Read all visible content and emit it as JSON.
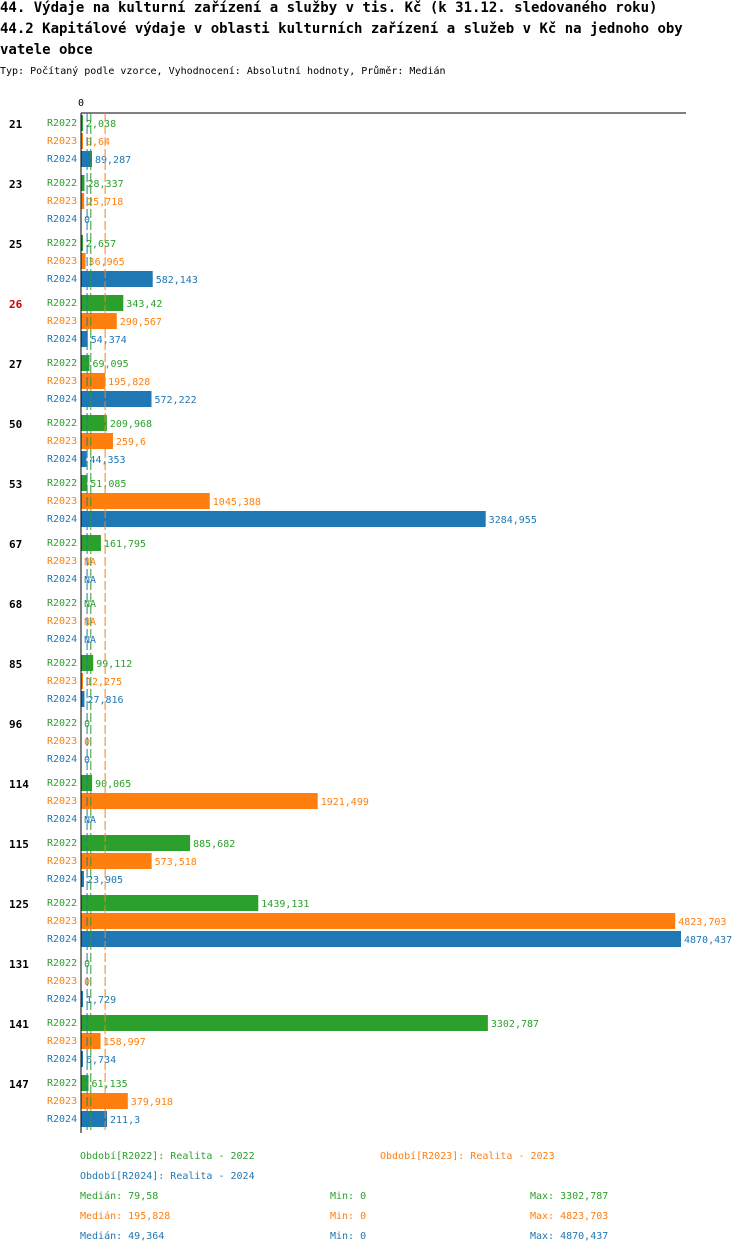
{
  "title": {
    "line1": "44. Výdaje na kulturní zařízení a služby v tis. Kč (k 31.12. sledovaného roku)",
    "line2": "44.2 Kapitálové výdaje v oblasti kulturních zařízení a služeb v Kč na jednoho oby",
    "line3": "vatele obce"
  },
  "subtitle": "Typ: Počítaný podle vzorce, Vyhodnocení: Absolutní hodnoty, Průměr: Medián",
  "colors": {
    "R2022": "#2ca02c",
    "R2023": "#ff7f0e",
    "R2024": "#1f77b4",
    "highlight": "#cc0000"
  },
  "chart_data": {
    "type": "bar",
    "orientation": "horizontal",
    "axis_zero_label": "0",
    "xlim": [
      0,
      4870.437
    ],
    "categories": [
      "21",
      "23",
      "25",
      "26",
      "27",
      "50",
      "53",
      "67",
      "68",
      "85",
      "96",
      "114",
      "115",
      "125",
      "131",
      "141",
      "147"
    ],
    "highlighted_category": "26",
    "series": [
      {
        "name": "R2022",
        "values": [
          2.038,
          28.337,
          2.657,
          343.42,
          69.095,
          209.968,
          51.085,
          161.795,
          null,
          99.112,
          0,
          90.065,
          885.682,
          1439.131,
          0,
          3302.787,
          61.135
        ],
        "labels": [
          "2,038",
          "28,337",
          "2,657",
          "343,42",
          "69,095",
          "209,968",
          "51,085",
          "161,795",
          "NA",
          "99,112",
          "0",
          "90,065",
          "885,682",
          "1439,131",
          "0",
          "3302,787",
          "61,135"
        ]
      },
      {
        "name": "R2023",
        "values": [
          0.64,
          25.718,
          36.965,
          290.567,
          195.828,
          259.6,
          1045.388,
          null,
          null,
          12.275,
          0,
          1921.499,
          573.518,
          4823.703,
          0,
          158.997,
          379.918
        ],
        "labels": [
          "0,64",
          "25,718",
          "36,965",
          "290,567",
          "195,828",
          "259,6",
          "1045,388",
          "NA",
          "NA",
          "12,275",
          "0",
          "1921,499",
          "573,518",
          "4823,703",
          "0",
          "158,997",
          "379,918"
        ]
      },
      {
        "name": "R2024",
        "values": [
          89.287,
          0,
          582.143,
          54.374,
          572.222,
          44.353,
          3284.955,
          null,
          null,
          27.816,
          0,
          null,
          23.905,
          4870.437,
          1.729,
          6.734,
          211.3
        ],
        "labels": [
          "89,287",
          "0",
          "582,143",
          "54,374",
          "572,222",
          "44,353",
          "3284,955",
          "NA",
          "NA",
          "27,816",
          "0",
          "NA",
          "23,905",
          "4870,437",
          "1,729",
          "6,734",
          "211,3"
        ]
      }
    ],
    "medians": {
      "R2022": 79.58,
      "R2023": 195.828,
      "R2024": 49.364
    }
  },
  "legend": {
    "periods": [
      {
        "key": "R2022",
        "text": "Období[R2022]: Realita - 2022"
      },
      {
        "key": "R2023",
        "text": "Období[R2023]: Realita - 2023"
      },
      {
        "key": "R2024",
        "text": "Období[R2024]: Realita - 2024"
      }
    ],
    "stats": [
      {
        "key": "R2022",
        "median": "Medián: 79,58",
        "min": "Min: 0",
        "max": "Max: 3302,787"
      },
      {
        "key": "R2023",
        "median": "Medián: 195,828",
        "min": "Min: 0",
        "max": "Max: 4823,703"
      },
      {
        "key": "R2024",
        "median": "Medián: 49,364",
        "min": "Min: 0",
        "max": "Max: 4870,437"
      }
    ]
  }
}
